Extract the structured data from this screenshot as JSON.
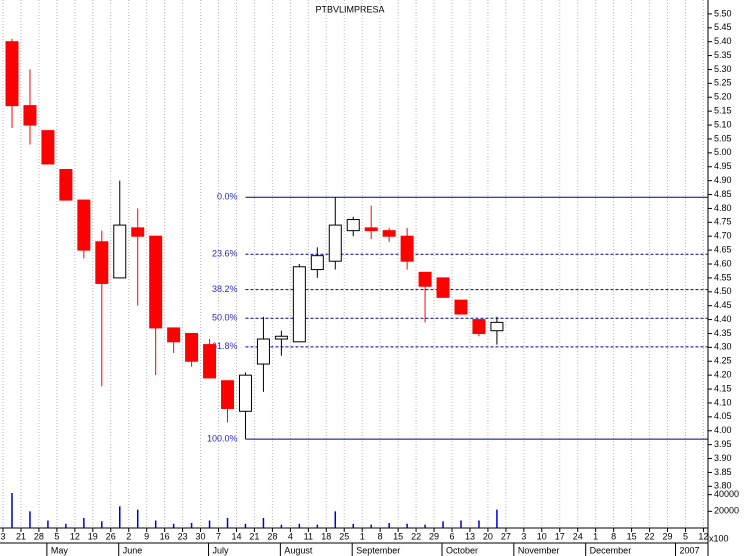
{
  "chart_data": {
    "type": "candlestick",
    "title": "PTBVLIMPRESA",
    "week_labels": [
      "3",
      "21",
      "28",
      "5",
      "12",
      "19",
      "26",
      "2",
      "9",
      "16",
      "23",
      "30",
      "7",
      "14",
      "21",
      "28",
      "4",
      "11",
      "18",
      "25",
      "1",
      "8",
      "15",
      "22",
      "29",
      "6",
      "13",
      "20",
      "27",
      "3",
      "10",
      "17",
      "24",
      "1",
      "8",
      "15",
      "22",
      "29",
      "5",
      "12"
    ],
    "month_labels": [
      "May",
      "June",
      "July",
      "August",
      "September",
      "October",
      "November",
      "December",
      "2007"
    ],
    "open": [
      5.4,
      5.17,
      5.08,
      4.94,
      4.83,
      4.68,
      4.55,
      4.73,
      4.7,
      4.37,
      4.35,
      4.31,
      4.18,
      4.07,
      4.24,
      4.33,
      4.32,
      4.58,
      4.61,
      4.72,
      4.73,
      4.72,
      4.7,
      4.57,
      4.55,
      4.47,
      4.4,
      4.36
    ],
    "high": [
      5.41,
      5.3,
      5.08,
      4.94,
      4.83,
      4.72,
      4.9,
      4.8,
      4.7,
      4.37,
      4.35,
      4.33,
      4.18,
      4.21,
      4.41,
      4.36,
      4.6,
      4.66,
      4.84,
      4.77,
      4.81,
      4.73,
      4.73,
      4.57,
      4.55,
      4.47,
      4.4,
      4.41
    ],
    "low": [
      5.09,
      5.03,
      4.96,
      4.83,
      4.62,
      4.16,
      4.55,
      4.45,
      4.2,
      4.28,
      4.23,
      4.19,
      4.03,
      3.97,
      4.14,
      4.27,
      4.32,
      4.55,
      4.58,
      4.7,
      4.69,
      4.68,
      4.58,
      4.39,
      4.48,
      4.42,
      4.34,
      4.31
    ],
    "close": [
      5.17,
      5.1,
      4.96,
      4.83,
      4.65,
      4.53,
      4.74,
      4.7,
      4.37,
      4.32,
      4.25,
      4.19,
      4.08,
      4.2,
      4.33,
      4.34,
      4.59,
      4.63,
      4.74,
      4.76,
      4.72,
      4.7,
      4.61,
      4.52,
      4.48,
      4.42,
      4.35,
      4.39
    ],
    "up_color": "#ffffff",
    "down_color": "#ff0000",
    "ylim": [
      3.65,
      5.55
    ],
    "yticks": [
      {
        "value": 3.8,
        "label": "3.80"
      },
      {
        "value": 3.85,
        "label": "3.85"
      },
      {
        "value": 3.9,
        "label": "3.90"
      },
      {
        "value": 3.95,
        "label": "3.95"
      },
      {
        "value": 4.0,
        "label": "4.00"
      },
      {
        "value": 4.05,
        "label": "4.05"
      },
      {
        "value": 4.1,
        "label": "4.10"
      },
      {
        "value": 4.15,
        "label": "4.15"
      },
      {
        "value": 4.2,
        "label": "4.20"
      },
      {
        "value": 4.25,
        "label": "4.25"
      },
      {
        "value": 4.3,
        "label": "4.30"
      },
      {
        "value": 4.35,
        "label": "4.35"
      },
      {
        "value": 4.4,
        "label": "4.40"
      },
      {
        "value": 4.45,
        "label": "4.45"
      },
      {
        "value": 4.5,
        "label": "4.50"
      },
      {
        "value": 4.55,
        "label": "4.55"
      },
      {
        "value": 4.6,
        "label": "4.60"
      },
      {
        "value": 4.65,
        "label": "4.65"
      },
      {
        "value": 4.7,
        "label": "4.70"
      },
      {
        "value": 4.75,
        "label": "4.75"
      },
      {
        "value": 4.8,
        "label": "4.80"
      },
      {
        "value": 4.85,
        "label": "4.85"
      },
      {
        "value": 4.9,
        "label": "4.90"
      },
      {
        "value": 4.95,
        "label": "4.95"
      },
      {
        "value": 5.0,
        "label": "5.00"
      },
      {
        "value": 5.05,
        "label": "5.05"
      },
      {
        "value": 5.1,
        "label": "5.10"
      },
      {
        "value": 5.15,
        "label": "5.15"
      },
      {
        "value": 5.2,
        "label": "5.20"
      },
      {
        "value": 5.25,
        "label": "5.25"
      },
      {
        "value": 5.3,
        "label": "5.30"
      },
      {
        "value": 5.35,
        "label": "5.35"
      },
      {
        "value": 5.4,
        "label": "5.40"
      },
      {
        "value": 5.45,
        "label": "5.45"
      },
      {
        "value": 5.5,
        "label": "5.50"
      }
    ],
    "volume": [
      42000,
      20000,
      9000,
      5000,
      12000,
      8000,
      26000,
      22000,
      9000,
      5000,
      6000,
      9000,
      12000,
      5000,
      12000,
      4000,
      5000,
      4000,
      20000,
      5000,
      4000,
      6000,
      5000,
      4000,
      8000,
      9000,
      9000,
      22000
    ],
    "volume_color": "#0000cc",
    "volume_ylim": [
      0,
      60000
    ],
    "volume_yticks": [
      20000,
      40000
    ],
    "volume_unit": "x100",
    "fibonacci": {
      "color": "#00008b",
      "levels": [
        {
          "label": "0.0%",
          "price": 4.84,
          "solid": true
        },
        {
          "label": "23.6%",
          "price": 4.635,
          "solid": false
        },
        {
          "label": "38.2%",
          "price": 4.508,
          "solid": false
        },
        {
          "label": "50.0%",
          "price": 4.405,
          "solid": false
        },
        {
          "label": "61.8%",
          "price": 4.302,
          "solid": false
        },
        {
          "label": "100.0%",
          "price": 3.97,
          "solid": true
        }
      ]
    },
    "grid": true
  }
}
